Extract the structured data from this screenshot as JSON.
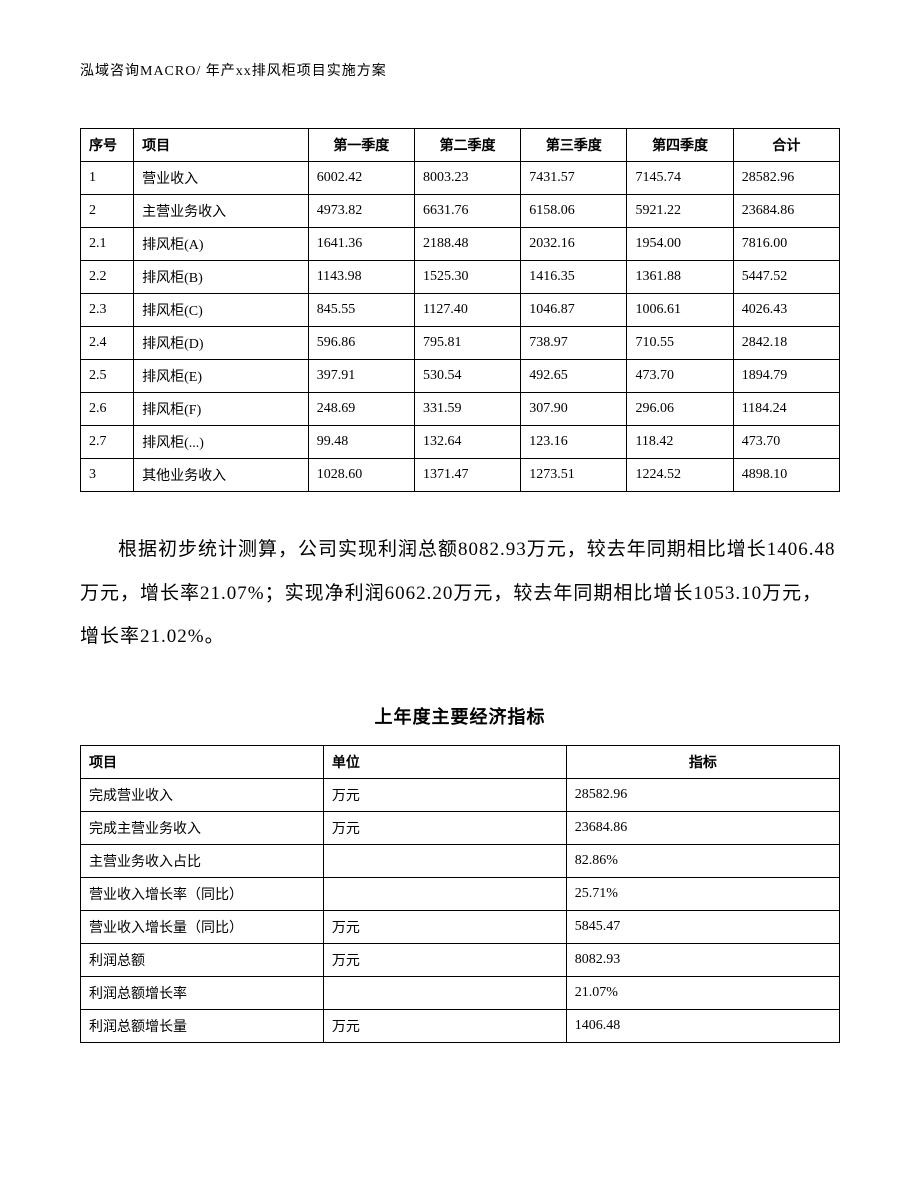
{
  "header": "泓域咨询MACRO/   年产xx排风柜项目实施方案",
  "table1": {
    "columns": [
      "序号",
      "项目",
      "第一季度",
      "第二季度",
      "第三季度",
      "第四季度",
      "合计"
    ],
    "rows": [
      [
        "1",
        "营业收入",
        "6002.42",
        "8003.23",
        "7431.57",
        "7145.74",
        "28582.96"
      ],
      [
        "2",
        "主营业务收入",
        "4973.82",
        "6631.76",
        "6158.06",
        "5921.22",
        "23684.86"
      ],
      [
        "2.1",
        "排风柜(A)",
        "1641.36",
        "2188.48",
        "2032.16",
        "1954.00",
        "7816.00"
      ],
      [
        "2.2",
        "排风柜(B)",
        "1143.98",
        "1525.30",
        "1416.35",
        "1361.88",
        "5447.52"
      ],
      [
        "2.3",
        "排风柜(C)",
        "845.55",
        "1127.40",
        "1046.87",
        "1006.61",
        "4026.43"
      ],
      [
        "2.4",
        "排风柜(D)",
        "596.86",
        "795.81",
        "738.97",
        "710.55",
        "2842.18"
      ],
      [
        "2.5",
        "排风柜(E)",
        "397.91",
        "530.54",
        "492.65",
        "473.70",
        "1894.79"
      ],
      [
        "2.6",
        "排风柜(F)",
        "248.69",
        "331.59",
        "307.90",
        "296.06",
        "1184.24"
      ],
      [
        "2.7",
        "排风柜(...)",
        "99.48",
        "132.64",
        "123.16",
        "118.42",
        "473.70"
      ],
      [
        "3",
        "其他业务收入",
        "1028.60",
        "1371.47",
        "1273.51",
        "1224.52",
        "4898.10"
      ]
    ]
  },
  "paragraph": "根据初步统计测算，公司实现利润总额8082.93万元，较去年同期相比增长1406.48万元，增长率21.07%；实现净利润6062.20万元，较去年同期相比增长1053.10万元，增长率21.02%。",
  "section_title": "上年度主要经济指标",
  "table2": {
    "columns": [
      "项目",
      "单位",
      "指标"
    ],
    "rows": [
      [
        "完成营业收入",
        "万元",
        "28582.96"
      ],
      [
        "完成主营业务收入",
        "万元",
        "23684.86"
      ],
      [
        "主营业务收入占比",
        "",
        "82.86%"
      ],
      [
        "营业收入增长率（同比）",
        "",
        "25.71%"
      ],
      [
        "营业收入增长量（同比）",
        "万元",
        "5845.47"
      ],
      [
        "利润总额",
        "万元",
        "8082.93"
      ],
      [
        "利润总额增长率",
        "",
        "21.07%"
      ],
      [
        "利润总额增长量",
        "万元",
        "1406.48"
      ]
    ]
  }
}
